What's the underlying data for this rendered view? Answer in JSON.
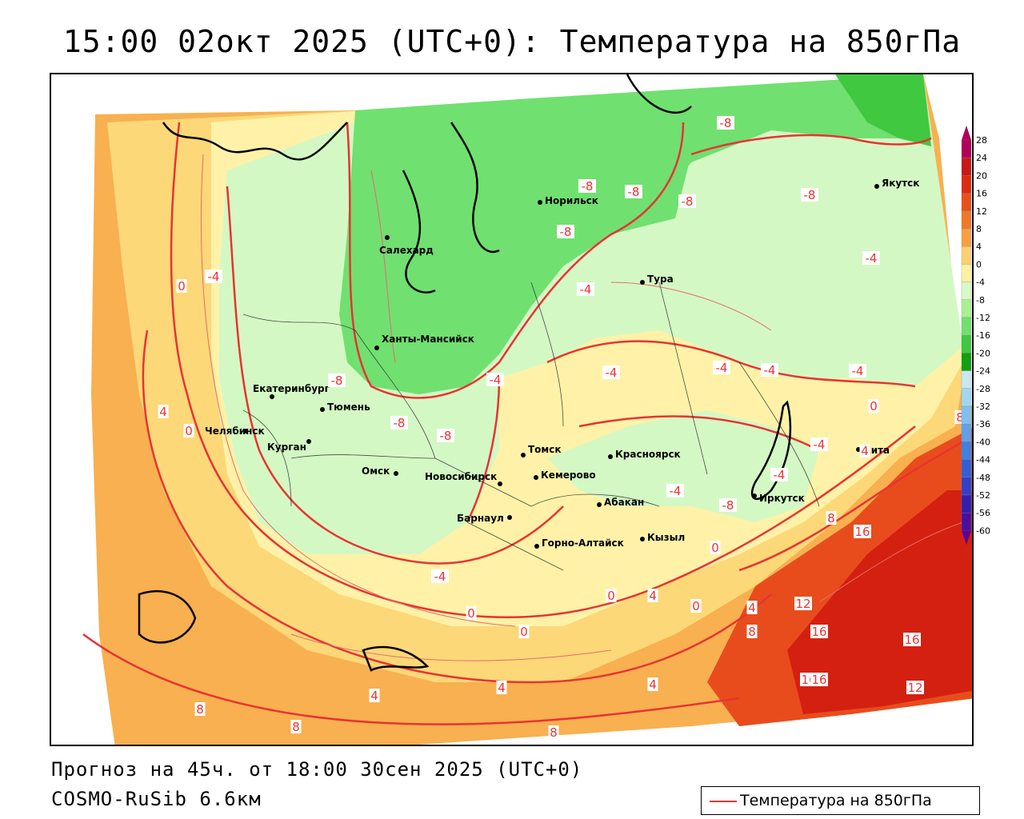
{
  "header": {
    "title": "15:00 02окт 2025 (UTC+0): Температура на 850гПа"
  },
  "footer": {
    "forecast": "Прогноз на 45ч. от 18:00 30сен 2025 (UTC+0)",
    "model": "COSMO-RuSib 6.6км"
  },
  "legend": {
    "label": "Температура на 850гПа",
    "line_color": "#e33333"
  },
  "scale": {
    "ticks": [
      "28",
      "24",
      "20",
      "16",
      "12",
      "8",
      "4",
      "0",
      "-4",
      "-8",
      "-12",
      "-16",
      "-20",
      "-24",
      "-28",
      "-32",
      "-36",
      "-40",
      "-44",
      "-48",
      "-52",
      "-56",
      "-60"
    ],
    "colors": [
      "#b0005a",
      "#c81818",
      "#dc2a10",
      "#e8501a",
      "#f07828",
      "#f8a040",
      "#fcd070",
      "#fff0a0",
      "#d8f8c8",
      "#a8f090",
      "#70e070",
      "#40c840",
      "#10a010",
      "#c8e8f0",
      "#a0d8f0",
      "#80c0f0",
      "#60a0e8",
      "#4080e0",
      "#3060d8",
      "#3040c8",
      "#3020b0",
      "#4810a0",
      "#600090"
    ]
  },
  "cities": [
    {
      "name": "Салехард"
    },
    {
      "name": "Норильск"
    },
    {
      "name": "Якутск"
    },
    {
      "name": "Тура"
    },
    {
      "name": "Ханты-Мансийск"
    },
    {
      "name": "Екатеринбург"
    },
    {
      "name": "Тюмень"
    },
    {
      "name": "Челябинск"
    },
    {
      "name": "Курган"
    },
    {
      "name": "Омск"
    },
    {
      "name": "Новосибирск"
    },
    {
      "name": "Томск"
    },
    {
      "name": "Кемерово"
    },
    {
      "name": "Красноярск"
    },
    {
      "name": "Абакан"
    },
    {
      "name": "Барнаул"
    },
    {
      "name": "Горно-Алтайск"
    },
    {
      "name": "Кызыл"
    },
    {
      "name": "Иркутск"
    },
    {
      "name": "Чита"
    }
  ],
  "isolines": [
    "-8",
    "-8",
    "-8",
    "-8",
    "-8",
    "-8",
    "-8",
    "-4",
    "-4",
    "-4",
    "-4",
    "-4",
    "-4",
    "-4",
    "-4",
    "-4",
    "-4",
    "-4",
    "-8",
    "-8",
    "-8",
    "0",
    "0",
    "0",
    "0",
    "0",
    "0",
    "0",
    "4",
    "4",
    "4",
    "4",
    "4",
    "4",
    "8",
    "8",
    "8",
    "8",
    "8",
    "12",
    "12",
    "16",
    "16",
    "16",
    "16",
    "16",
    "4",
    "8",
    "0",
    "-4"
  ]
}
